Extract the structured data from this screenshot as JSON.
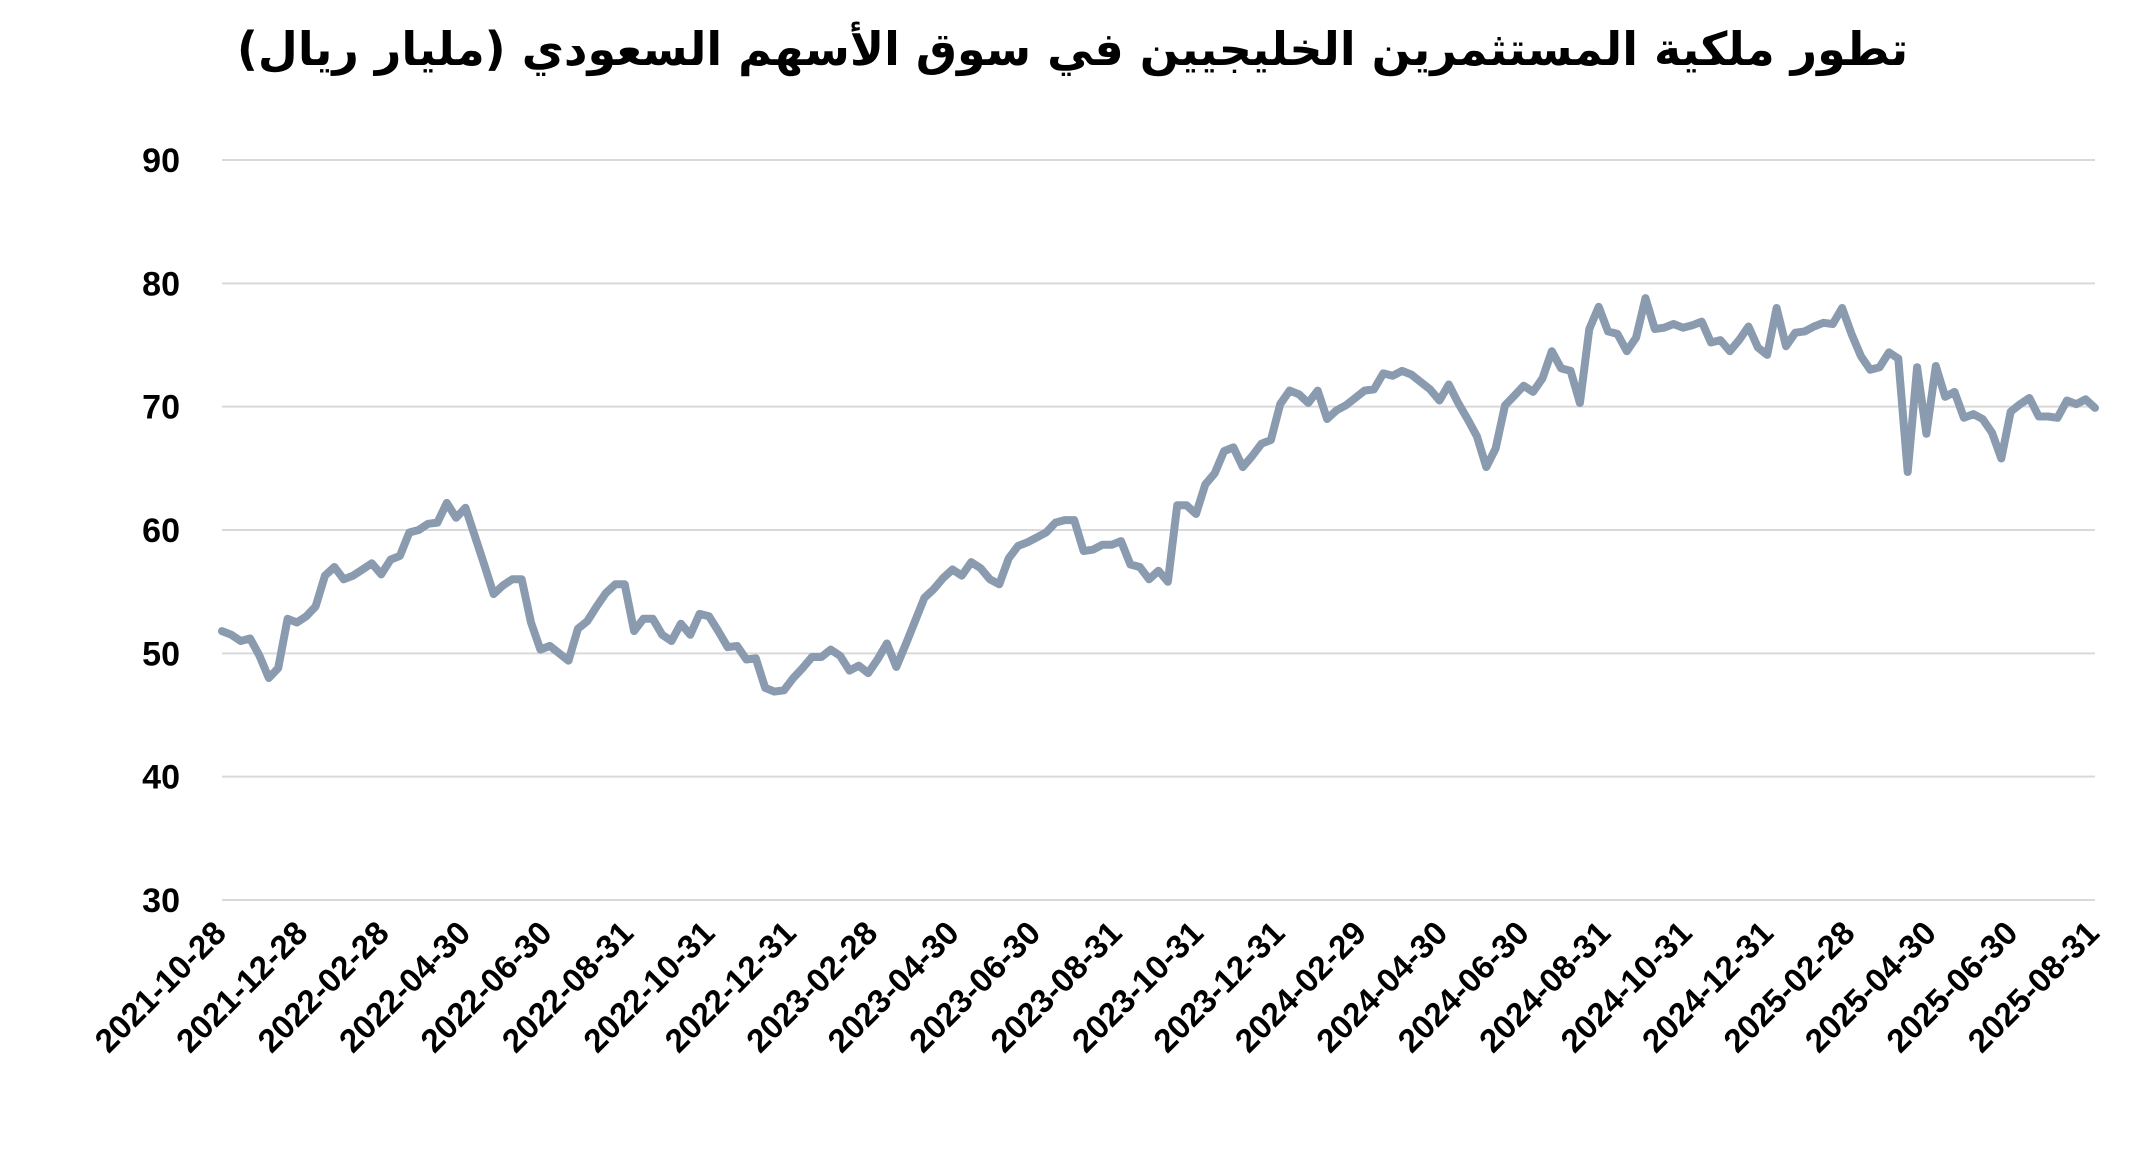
{
  "chart_data": {
    "type": "line",
    "title": "تطور ملكية المستثمرين الخليجيين في سوق الأسهم السعودي (مليار ريال)",
    "xlabel": "",
    "ylabel": "",
    "ylim": [
      30,
      90
    ],
    "yticks": [
      90,
      80,
      70,
      60,
      50,
      40,
      30
    ],
    "grid": true,
    "legend": "none",
    "line_color": "#8a9bb0",
    "grid_color": "#d9d9d9",
    "xtick_labels": [
      "2021-10-28",
      "2021-12-28",
      "2022-02-28",
      "2022-04-30",
      "2022-06-30",
      "2022-08-31",
      "2022-10-31",
      "2022-12-31",
      "2023-02-28",
      "2023-04-30",
      "2023-06-30",
      "2023-08-31",
      "2023-10-31",
      "2023-12-31",
      "2024-02-29",
      "2024-04-30",
      "2024-06-30",
      "2024-08-31",
      "2024-10-31",
      "2024-12-31",
      "2025-02-28",
      "2025-04-30",
      "2025-06-30",
      "2025-08-31"
    ],
    "series": [
      {
        "values": [
          51.8,
          51.5,
          51.0,
          51.2,
          49.8,
          48.0,
          48.8,
          52.8,
          52.5,
          53.0,
          53.8,
          56.3,
          57.0,
          56.0,
          56.3,
          56.8,
          57.3,
          56.4,
          57.6,
          57.9,
          59.8,
          60.0,
          60.5,
          60.6,
          62.2,
          61.0,
          61.8,
          59.5,
          57.2,
          54.8,
          55.5,
          56.0,
          56.0,
          52.5,
          50.3,
          50.6,
          50.0,
          49.4,
          52.0,
          52.6,
          53.8,
          54.9,
          55.6,
          55.6,
          51.8,
          52.8,
          52.8,
          51.5,
          51.0,
          52.4,
          51.5,
          53.2,
          53.0,
          51.8,
          50.5,
          50.6,
          49.5,
          49.6,
          47.2,
          46.9,
          47.0,
          48.0,
          48.8,
          49.7,
          49.7,
          50.3,
          49.8,
          48.6,
          49.0,
          48.4,
          49.5,
          50.8,
          48.9,
          50.7,
          52.6,
          54.5,
          55.2,
          56.1,
          56.8,
          56.3,
          57.4,
          56.9,
          56.0,
          55.6,
          57.7,
          58.7,
          59.0,
          59.4,
          59.8,
          60.6,
          60.8,
          60.8,
          58.3,
          58.4,
          58.8,
          58.8,
          59.1,
          57.2,
          57.0,
          56.0,
          56.7,
          55.8,
          62.0,
          62.0,
          61.3,
          63.7,
          64.6,
          66.4,
          66.7,
          65.1,
          66.0,
          67.0,
          67.3,
          70.2,
          71.3,
          71.0,
          70.3,
          71.3,
          69.0,
          69.7,
          70.1,
          70.7,
          71.3,
          71.4,
          72.7,
          72.5,
          72.9,
          72.6,
          72.0,
          71.4,
          70.5,
          71.8,
          70.3,
          69.0,
          67.6,
          65.1,
          66.6,
          70.1,
          70.9,
          71.7,
          71.2,
          72.3,
          74.5,
          73.1,
          72.9,
          70.3,
          76.3,
          78.1,
          76.1,
          75.9,
          74.5,
          75.6,
          78.8,
          76.3,
          76.4,
          76.7,
          76.4,
          76.6,
          76.9,
          75.2,
          75.4,
          74.5,
          75.4,
          76.5,
          74.8,
          74.2,
          78.0,
          74.9,
          76.0,
          76.1,
          76.5,
          76.8,
          76.7,
          78.0,
          75.9,
          74.1,
          73.0,
          73.2,
          74.4,
          73.9,
          64.7,
          73.2,
          67.8,
          73.3,
          70.8,
          71.2,
          69.1,
          69.4,
          69.0,
          67.9,
          65.8,
          69.6,
          70.2,
          70.7,
          69.2,
          69.2,
          69.1,
          70.5,
          70.2,
          70.6,
          69.9
        ]
      }
    ]
  }
}
